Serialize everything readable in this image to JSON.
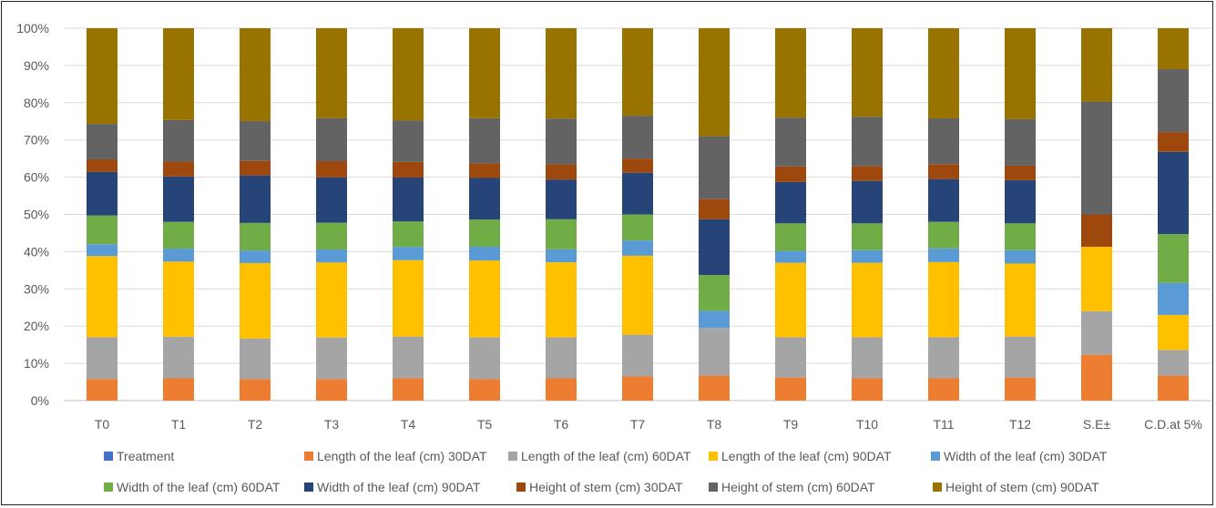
{
  "chart_data": {
    "type": "bar",
    "stacked": "percent",
    "categories": [
      "T0",
      "T1",
      "T2",
      "T3",
      "T4",
      "T5",
      "T6",
      "T7",
      "T8",
      "T9",
      "T10",
      "T11",
      "T12",
      "S.E±",
      "C.D.at 5%"
    ],
    "yticks": [
      "0%",
      "10%",
      "20%",
      "30%",
      "40%",
      "50%",
      "60%",
      "70%",
      "80%",
      "90%",
      "100%"
    ],
    "ylim": [
      0,
      100
    ],
    "grid": true,
    "legend_position": "bottom",
    "legend_only_series": {
      "name": "Treatment",
      "color": "#4472C4"
    },
    "series": [
      {
        "name": "Length of the leaf (cm) 30DAT",
        "color": "#ED7D31",
        "values": [
          5.8,
          6.0,
          5.8,
          5.8,
          6.0,
          5.8,
          6.0,
          6.5,
          6.7,
          6.2,
          6.0,
          6.0,
          6.2,
          12.3,
          6.7
        ]
      },
      {
        "name": "Length of the leaf (cm) 60DAT",
        "color": "#A5A5A5",
        "values": [
          11.2,
          11.2,
          10.9,
          11.2,
          11.2,
          11.2,
          11.0,
          11.2,
          12.8,
          10.8,
          11.0,
          11.0,
          11.0,
          11.7,
          6.9
        ]
      },
      {
        "name": "Length of the leaf (cm) 90DAT",
        "color": "#FFC000",
        "values": [
          21.8,
          20.2,
          20.3,
          20.2,
          20.5,
          20.7,
          20.2,
          21.2,
          0,
          20.0,
          20.0,
          20.2,
          19.6,
          17.3,
          9.4
        ]
      },
      {
        "name": "Width of the leaf (cm) 30DAT",
        "color": "#5B9BD5",
        "values": [
          3.2,
          3.5,
          3.4,
          3.5,
          3.6,
          3.7,
          3.5,
          4.1,
          4.6,
          3.2,
          3.4,
          3.7,
          3.6,
          0,
          8.6
        ]
      },
      {
        "name": "Width of the leaf (cm) 60DAT",
        "color": "#70AD47",
        "values": [
          7.7,
          7.2,
          7.4,
          7.2,
          6.8,
          7.3,
          8.1,
          7.0,
          9.6,
          7.4,
          7.2,
          7.1,
          7.2,
          0,
          13.1
        ]
      },
      {
        "name": "Width of the leaf (cm) 90DAT",
        "color": "#264478",
        "values": [
          11.7,
          12.2,
          12.8,
          12.2,
          11.8,
          11.2,
          10.7,
          11.2,
          15.0,
          11.1,
          11.4,
          11.5,
          11.6,
          0,
          22.1
        ]
      },
      {
        "name": "Height of stem (cm) 30DAT",
        "color": "#9E480E",
        "values": [
          3.4,
          4.0,
          3.9,
          4.4,
          4.2,
          3.9,
          4.1,
          3.8,
          5.4,
          4.2,
          4.0,
          4.0,
          3.9,
          8.7,
          5.3
        ]
      },
      {
        "name": "Height of stem (cm) 60DAT",
        "color": "#636363",
        "values": [
          9.5,
          11.2,
          10.7,
          11.6,
          11.1,
          12.2,
          12.3,
          11.5,
          16.9,
          13.1,
          13.2,
          12.3,
          12.5,
          30.3,
          16.9
        ]
      },
      {
        "name": "Height of stem (cm) 90DAT",
        "color": "#997300",
        "values": [
          25.7,
          24.7,
          25.0,
          24.2,
          24.8,
          24.2,
          24.3,
          23.5,
          29.0,
          24.0,
          23.8,
          24.2,
          24.4,
          19.7,
          11.0
        ]
      }
    ]
  }
}
